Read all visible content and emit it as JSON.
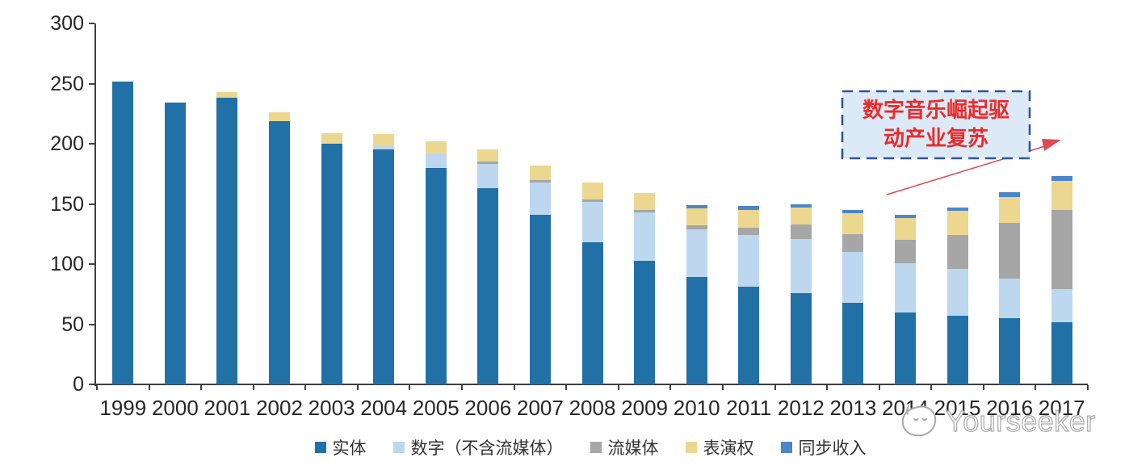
{
  "chart_data": {
    "type": "bar",
    "subtype": "stacked",
    "title": "",
    "categories": [
      "1999",
      "2000",
      "2001",
      "2002",
      "2003",
      "2004",
      "2005",
      "2006",
      "2007",
      "2008",
      "2009",
      "2010",
      "2011",
      "2012",
      "2013",
      "2014",
      "2015",
      "2016",
      "2017"
    ],
    "series": [
      {
        "key": "physical",
        "name": "实体",
        "color": "#2171A6",
        "values": [
          252,
          234,
          238,
          219,
          200,
          195,
          180,
          163,
          141,
          118,
          103,
          89,
          81,
          76,
          68,
          60,
          57,
          55,
          52
        ]
      },
      {
        "key": "digital",
        "name": "数字（不含流媒体）",
        "color": "#BDD7EE",
        "values": [
          0,
          0,
          0,
          0,
          1,
          3,
          12,
          20,
          27,
          34,
          40,
          40,
          43,
          45,
          42,
          41,
          39,
          33,
          27
        ]
      },
      {
        "key": "streaming",
        "name": "流媒体",
        "color": "#A6A6A6",
        "values": [
          0,
          0,
          0,
          0,
          0,
          0,
          0,
          2,
          2,
          2,
          2,
          3,
          6,
          12,
          15,
          19,
          28,
          46,
          66
        ]
      },
      {
        "key": "performance",
        "name": "表演权",
        "color": "#EBD78F",
        "values": [
          0,
          0,
          5,
          7,
          8,
          10,
          10,
          10,
          12,
          14,
          14,
          14,
          15,
          14,
          17,
          18,
          20,
          22,
          24
        ]
      },
      {
        "key": "sync",
        "name": "同步收入",
        "color": "#4A86C8",
        "values": [
          0,
          0,
          0,
          0,
          0,
          0,
          0,
          0,
          0,
          0,
          0,
          3,
          3,
          3,
          3,
          3,
          3,
          4,
          4
        ]
      }
    ],
    "ylim": [
      0,
      300
    ],
    "ytick_step": 50,
    "yticks": [
      "0",
      "50",
      "100",
      "150",
      "200",
      "250",
      "300"
    ],
    "gridlines": false,
    "legend_position": "bottom"
  },
  "annotation": {
    "line1": "数字音乐崛起驱",
    "line2": "动产业复苏",
    "box_fill": "#DCE9F7",
    "box_border": "#2F5597",
    "text_color": "#EA2B2B",
    "arrow_color": "#E04A55"
  },
  "watermark": {
    "text": "Yourseeker",
    "logo": "yourseeker-cat-logo",
    "color": "#A8A8A8"
  }
}
